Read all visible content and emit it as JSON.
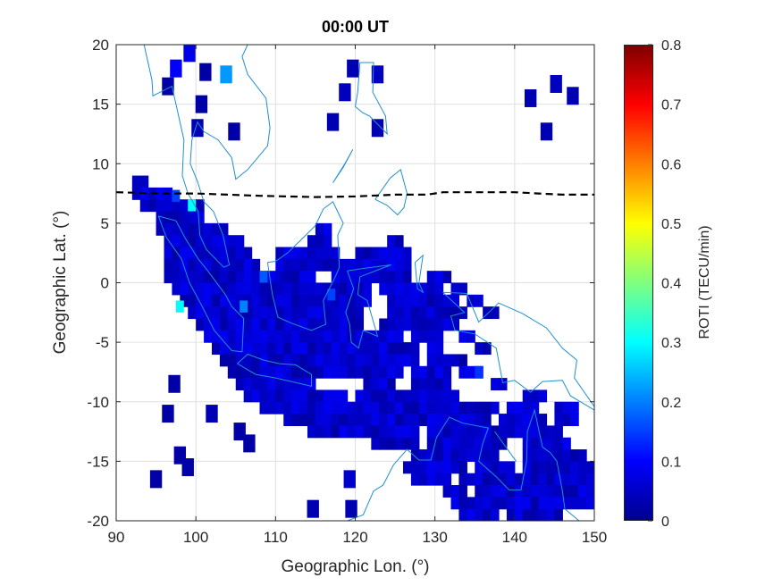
{
  "chart_data": {
    "type": "heatmap",
    "title": "00:00 UT",
    "xlabel": "Geographic Lon. (°)",
    "ylabel": "Geographic Lat. (°)",
    "xlim": [
      90,
      150
    ],
    "ylim": [
      -20,
      20
    ],
    "xticks": [
      "90",
      "100",
      "110",
      "120",
      "130",
      "140",
      "150"
    ],
    "yticks": [
      "-20",
      "-15",
      "-10",
      "-5",
      "0",
      "5",
      "10",
      "15",
      "20"
    ],
    "grid": true,
    "colorbar": {
      "label": "ROTI (TECU/min)",
      "colormap": "jet",
      "clim": [
        0,
        0.8
      ],
      "ticks": [
        "0",
        "0.1",
        "0.2",
        "0.3",
        "0.4",
        "0.5",
        "0.6",
        "0.7",
        "0.8"
      ]
    },
    "default_roti": 0.06,
    "bands": [
      {
        "lat": 8.5,
        "ranges": [
          [
            92,
            94
          ]
        ]
      },
      {
        "lat": 7.5,
        "ranges": [
          [
            92,
            97
          ]
        ]
      },
      {
        "lat": 6.5,
        "ranges": [
          [
            93,
            101
          ]
        ]
      },
      {
        "lat": 5.5,
        "ranges": [
          [
            95,
            101
          ]
        ]
      },
      {
        "lat": 4.5,
        "ranges": [
          [
            95,
            104
          ],
          [
            115,
            117
          ]
        ]
      },
      {
        "lat": 3.5,
        "ranges": [
          [
            96,
            106
          ],
          [
            114,
            117
          ],
          [
            124,
            126
          ]
        ]
      },
      {
        "lat": 2.5,
        "ranges": [
          [
            96,
            107
          ],
          [
            110,
            118
          ],
          [
            120,
            127
          ]
        ]
      },
      {
        "lat": 1.5,
        "ranges": [
          [
            96,
            108
          ],
          [
            110,
            127
          ]
        ]
      },
      {
        "lat": 0.5,
        "ranges": [
          [
            96,
            115
          ],
          [
            117,
            127
          ],
          [
            129,
            132
          ]
        ]
      },
      {
        "lat": -0.5,
        "ranges": [
          [
            97,
            122
          ],
          [
            123,
            131
          ],
          [
            132,
            134
          ]
        ]
      },
      {
        "lat": -1.5,
        "ranges": [
          [
            98,
            122
          ],
          [
            124,
            133
          ],
          [
            134,
            136
          ]
        ]
      },
      {
        "lat": -2.5,
        "ranges": [
          [
            99,
            121
          ],
          [
            124,
            134
          ],
          [
            136,
            138
          ]
        ]
      },
      {
        "lat": -3.5,
        "ranges": [
          [
            100,
            121
          ],
          [
            123,
            133
          ]
        ]
      },
      {
        "lat": -4.5,
        "ranges": [
          [
            101,
            126
          ],
          [
            127,
            131
          ],
          [
            133,
            135
          ]
        ]
      },
      {
        "lat": -5.5,
        "ranges": [
          [
            102,
            128
          ],
          [
            129,
            131
          ],
          [
            135,
            137
          ]
        ]
      },
      {
        "lat": -6.5,
        "ranges": [
          [
            103,
            128
          ],
          [
            129,
            134
          ]
        ]
      },
      {
        "lat": -7.5,
        "ranges": [
          [
            104,
            126
          ],
          [
            127,
            132
          ],
          [
            133,
            136
          ]
        ]
      },
      {
        "lat": -8.5,
        "ranges": [
          [
            105,
            115
          ],
          [
            121,
            125
          ],
          [
            127,
            132
          ],
          [
            137,
            139
          ]
        ]
      },
      {
        "lat": -9.5,
        "ranges": [
          [
            106,
            119
          ],
          [
            120,
            133
          ],
          [
            141,
            144
          ]
        ]
      },
      {
        "lat": -10.5,
        "ranges": [
          [
            108,
            138
          ],
          [
            139,
            143
          ],
          [
            145,
            148
          ]
        ]
      },
      {
        "lat": -11.5,
        "ranges": [
          [
            111,
            137
          ],
          [
            138,
            144
          ],
          [
            145,
            148
          ]
        ]
      },
      {
        "lat": -12.5,
        "ranges": [
          [
            114,
            128
          ],
          [
            129,
            146
          ]
        ]
      },
      {
        "lat": -13.5,
        "ranges": [
          [
            122,
            128
          ],
          [
            129,
            139
          ],
          [
            141,
            147
          ]
        ]
      },
      {
        "lat": -14.5,
        "ranges": [
          [
            127,
            138
          ],
          [
            141,
            149
          ]
        ]
      },
      {
        "lat": -15.5,
        "ranges": [
          [
            126,
            134
          ],
          [
            135,
            140
          ],
          [
            141,
            150
          ]
        ]
      },
      {
        "lat": -16.5,
        "ranges": [
          [
            127,
            132
          ],
          [
            133,
            150
          ]
        ]
      },
      {
        "lat": -17.5,
        "ranges": [
          [
            131,
            134
          ],
          [
            135,
            150
          ]
        ]
      },
      {
        "lat": -18.5,
        "ranges": [
          [
            132,
            150
          ]
        ]
      },
      {
        "lat": -19.5,
        "ranges": [
          [
            133,
            138
          ],
          [
            139,
            146
          ]
        ]
      }
    ],
    "cells": [
      [
        96.5,
        16.5,
        0.03
      ],
      [
        97.5,
        18.0,
        0.1
      ],
      [
        99.2,
        19.3,
        0.08
      ],
      [
        101.2,
        17.7,
        0.03
      ],
      [
        103.8,
        17.5,
        0.22
      ],
      [
        100.7,
        15.0,
        0.03
      ],
      [
        100.2,
        13.0,
        0.04
      ],
      [
        104.8,
        12.7,
        0.03
      ],
      [
        119.7,
        18.0,
        0.04
      ],
      [
        122.8,
        17.5,
        0.05
      ],
      [
        118.7,
        16.0,
        0.05
      ],
      [
        117.2,
        13.5,
        0.04
      ],
      [
        122.8,
        13.0,
        0.04
      ],
      [
        142.0,
        15.5,
        0.04
      ],
      [
        145.2,
        16.7,
        0.05
      ],
      [
        147.3,
        15.7,
        0.04
      ],
      [
        144.0,
        12.7,
        0.04
      ],
      [
        97.3,
        -8.5,
        0.03
      ],
      [
        96.5,
        -11.0,
        0.03
      ],
      [
        102.0,
        -11.0,
        0.04
      ],
      [
        105.5,
        -12.5,
        0.03
      ],
      [
        106.7,
        -13.5,
        0.03
      ],
      [
        98.0,
        -14.5,
        0.03
      ],
      [
        99.0,
        -15.5,
        0.03
      ],
      [
        95.0,
        -16.5,
        0.03
      ],
      [
        114.7,
        -19.0,
        0.04
      ],
      [
        119.3,
        -16.5,
        0.06
      ],
      [
        119.5,
        -19.0,
        0.04
      ]
    ],
    "hotspots": [
      [
        99.5,
        6.5,
        0.3
      ],
      [
        97.5,
        7.3,
        0.15
      ],
      [
        98.0,
        -2.0,
        0.3
      ],
      [
        106.0,
        -2.0,
        0.2
      ],
      [
        117.0,
        -1.0,
        0.15
      ],
      [
        108.5,
        0.5,
        0.17
      ],
      [
        135.5,
        -7.5,
        0.14
      ]
    ],
    "magnetic_equator": [
      [
        90,
        7.6
      ],
      [
        96,
        7.5
      ],
      [
        100,
        7.5
      ],
      [
        104,
        7.4
      ],
      [
        108,
        7.3
      ],
      [
        115,
        7.2
      ],
      [
        120,
        7.25
      ],
      [
        125,
        7.4
      ],
      [
        129,
        7.4
      ],
      [
        131,
        7.6
      ],
      [
        135,
        7.6
      ],
      [
        140,
        7.6
      ],
      [
        143,
        7.5
      ],
      [
        146,
        7.4
      ],
      [
        150,
        7.4
      ]
    ],
    "coastlines": [
      [
        [
          93.5,
          20
        ],
        [
          94.5,
          17
        ],
        [
          94.6,
          15.7
        ],
        [
          97,
          16.5
        ],
        [
          97.5,
          15
        ],
        [
          98.5,
          12
        ],
        [
          98.3,
          9
        ],
        [
          99,
          7.5
        ],
        [
          100.3,
          6
        ],
        [
          100.5,
          4
        ],
        [
          101.3,
          2.8
        ],
        [
          103.5,
          1.3
        ],
        [
          104.2,
          1.5
        ],
        [
          103.4,
          4
        ],
        [
          102.2,
          6
        ],
        [
          101,
          6.8
        ],
        [
          100.2,
          8.5
        ],
        [
          99.3,
          10
        ],
        [
          99.5,
          12
        ],
        [
          100.2,
          13.5
        ],
        [
          101,
          12.7
        ],
        [
          102.8,
          12
        ],
        [
          104.5,
          10.5
        ],
        [
          105,
          8.7
        ],
        [
          106.5,
          9.5
        ],
        [
          109,
          11.5
        ],
        [
          109.3,
          13
        ],
        [
          108.8,
          15.5
        ],
        [
          106.5,
          17.5
        ],
        [
          105.8,
          19
        ],
        [
          106.5,
          20
        ]
      ],
      [
        [
          95.3,
          5.6
        ],
        [
          97.5,
          5.2
        ],
        [
          98.7,
          3.7
        ],
        [
          100.3,
          2
        ],
        [
          101.5,
          1
        ],
        [
          103.7,
          -1
        ],
        [
          104.5,
          -2
        ],
        [
          106,
          -3
        ],
        [
          105.8,
          -5.8
        ],
        [
          104.5,
          -5.7
        ],
        [
          102.3,
          -4
        ],
        [
          100.8,
          -2
        ],
        [
          99.2,
          0
        ],
        [
          98.2,
          2
        ],
        [
          96.3,
          3.8
        ],
        [
          95.3,
          5.6
        ]
      ],
      [
        [
          105.2,
          -6.8
        ],
        [
          106.5,
          -6
        ],
        [
          108.5,
          -6.5
        ],
        [
          110.5,
          -6.8
        ],
        [
          112.5,
          -6.9
        ],
        [
          114.5,
          -7.7
        ],
        [
          114.5,
          -8.7
        ],
        [
          112,
          -8.3
        ],
        [
          110,
          -8
        ],
        [
          107.5,
          -7.7
        ],
        [
          105.2,
          -6.8
        ]
      ],
      [
        [
          109,
          1.7
        ],
        [
          109.6,
          -1
        ],
        [
          110.3,
          -2.9
        ],
        [
          112,
          -3.4
        ],
        [
          114.5,
          -4
        ],
        [
          116.3,
          -3.5
        ],
        [
          116,
          -1.5
        ],
        [
          117.5,
          0.5
        ],
        [
          118,
          1.3
        ],
        [
          117.8,
          4
        ],
        [
          118.5,
          5
        ],
        [
          117.2,
          6.8
        ],
        [
          116,
          6.2
        ],
        [
          115,
          4.8
        ],
        [
          113.5,
          3.8
        ],
        [
          111.5,
          2.5
        ],
        [
          110,
          1.8
        ],
        [
          109,
          1.7
        ]
      ],
      [
        [
          119,
          1
        ],
        [
          121,
          1.2
        ],
        [
          124.5,
          1.5
        ],
        [
          120.6,
          0.5
        ],
        [
          120.3,
          -1
        ],
        [
          121.5,
          -1.5
        ],
        [
          122.8,
          -4.5
        ],
        [
          121,
          -4
        ],
        [
          120.4,
          -5.5
        ],
        [
          119.5,
          -5
        ],
        [
          119.3,
          -3.5
        ],
        [
          118.8,
          -2.5
        ],
        [
          119.8,
          -0.5
        ],
        [
          119,
          1
        ]
      ],
      [
        [
          120.6,
          18.5
        ],
        [
          120.3,
          16
        ],
        [
          120,
          14.8
        ],
        [
          120.9,
          14.3
        ],
        [
          121.8,
          14
        ],
        [
          124,
          12.5
        ],
        [
          123.8,
          14
        ],
        [
          122.2,
          16
        ],
        [
          122.3,
          18.5
        ],
        [
          120.6,
          18.5
        ]
      ],
      [
        [
          122.5,
          7
        ],
        [
          124.4,
          8.8
        ],
        [
          125.7,
          9.5
        ],
        [
          126.5,
          7.5
        ],
        [
          126.1,
          6.3
        ],
        [
          125.3,
          5.7
        ],
        [
          124,
          6.5
        ],
        [
          122.5,
          7
        ]
      ],
      [
        [
          117.2,
          8.4
        ],
        [
          118.7,
          10
        ],
        [
          119.7,
          11.2
        ],
        [
          118.5,
          9.7
        ],
        [
          117.2,
          8.4
        ]
      ],
      [
        [
          127.5,
          1.7
        ],
        [
          128.5,
          2.3
        ],
        [
          128,
          0
        ],
        [
          128.5,
          -0.8
        ],
        [
          127.8,
          -0.5
        ],
        [
          127.5,
          1.7
        ]
      ],
      [
        [
          131,
          -0.8
        ],
        [
          134,
          -0.9
        ],
        [
          135.5,
          -3.3
        ],
        [
          138,
          -1.7
        ],
        [
          141,
          -2.6
        ],
        [
          144,
          -3.8
        ],
        [
          146,
          -5.5
        ],
        [
          147.8,
          -6.5
        ],
        [
          147.5,
          -8
        ],
        [
          150,
          -10.4
        ],
        [
          150,
          -10.7
        ],
        [
          147,
          -9.5
        ],
        [
          146,
          -8.2
        ],
        [
          143.5,
          -8.3
        ],
        [
          142,
          -9.2
        ],
        [
          140,
          -8.2
        ],
        [
          138.5,
          -8.4
        ],
        [
          137.7,
          -5.5
        ],
        [
          135,
          -4.3
        ],
        [
          132.5,
          -4
        ],
        [
          132,
          -2.8
        ],
        [
          133.7,
          -2.5
        ],
        [
          131,
          -0.8
        ]
      ],
      [
        [
          114.3,
          -22
        ],
        [
          114.5,
          -21
        ],
        [
          116.7,
          -20.6
        ],
        [
          119,
          -20
        ],
        [
          121,
          -19.5
        ],
        [
          122.3,
          -17.5
        ],
        [
          123.5,
          -17
        ],
        [
          124.8,
          -15.3
        ],
        [
          126.5,
          -14
        ],
        [
          128,
          -14.9
        ],
        [
          129.5,
          -14.9
        ],
        [
          130.2,
          -13
        ],
        [
          131.8,
          -11.3
        ],
        [
          133.5,
          -11.8
        ],
        [
          136.7,
          -12.2
        ],
        [
          136,
          -13.5
        ],
        [
          135.5,
          -15
        ],
        [
          137.7,
          -16.3
        ],
        [
          139.3,
          -17.4
        ],
        [
          140.8,
          -17.4
        ],
        [
          141.5,
          -15
        ],
        [
          141.6,
          -12.5
        ],
        [
          142.5,
          -10.7
        ],
        [
          143.5,
          -13.8
        ],
        [
          144.5,
          -14.3
        ],
        [
          145.3,
          -15
        ],
        [
          146,
          -17.5
        ],
        [
          146.3,
          -19
        ],
        [
          148.8,
          -20.4
        ],
        [
          149.5,
          -22
        ]
      ],
      [
        [
          140.2,
          -15
        ],
        [
          137.5,
          -12.5
        ]
      ]
    ]
  }
}
